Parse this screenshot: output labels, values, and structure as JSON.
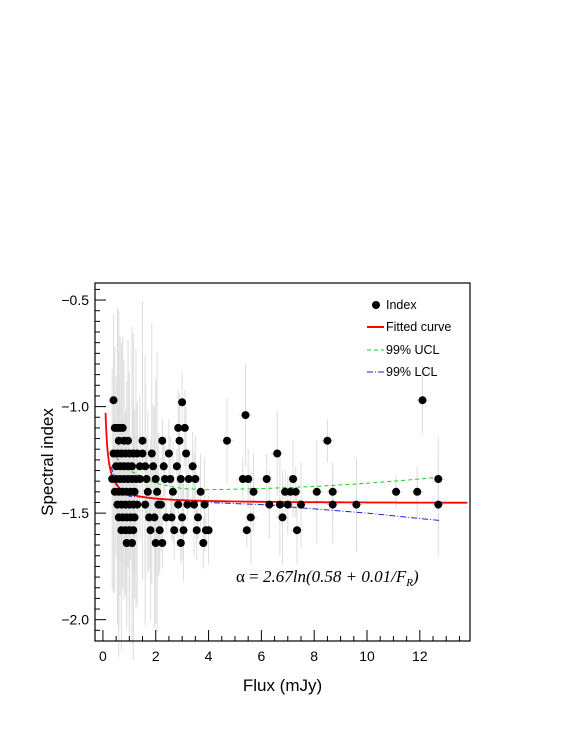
{
  "chart_data": {
    "type": "scatter",
    "xlabel": "Flux (mJy)",
    "ylabel": "Spectral index",
    "xlim": [
      -0.3,
      13.9
    ],
    "ylim": [
      -2.1,
      -0.42
    ],
    "x_ticks": [
      0,
      2,
      4,
      6,
      8,
      10,
      12
    ],
    "y_ticks": [
      -0.5,
      -1.0,
      -1.5,
      -2.0
    ],
    "x_tick_labels": [
      "0",
      "2",
      "4",
      "6",
      "8",
      "10",
      "12"
    ],
    "y_tick_labels": [
      "−0.5",
      "−1.0",
      "−1.5",
      "−2.0"
    ],
    "legend_position": "top-right",
    "legend": [
      {
        "label": "Index",
        "style": "marker",
        "color": "#000000"
      },
      {
        "label": "Fitted curve",
        "style": "solid",
        "color": "#ff0000"
      },
      {
        "label": "99% UCL",
        "style": "dashed",
        "color": "#22cc22"
      },
      {
        "label": "99% LCL",
        "style": "dashdot",
        "color": "#2222cc"
      }
    ],
    "annotation": {
      "prefix": "α = ",
      "formula": "2.67ln(0.58 + 0.01/F",
      "subscript": "R",
      "suffix": ")"
    },
    "fit": {
      "a": 2.67,
      "b": 0.58,
      "c": 0.01
    },
    "ucl": [
      [
        0.5,
        -1.24
      ],
      [
        1,
        -1.3
      ],
      [
        2,
        -1.36
      ],
      [
        3,
        -1.385
      ],
      [
        4,
        -1.39
      ],
      [
        6,
        -1.385
      ],
      [
        8,
        -1.375
      ],
      [
        10,
        -1.36
      ],
      [
        12,
        -1.34
      ],
      [
        12.8,
        -1.33
      ]
    ],
    "lcl": [
      [
        0.3,
        -1.28
      ],
      [
        0.6,
        -1.38
      ],
      [
        1,
        -1.42
      ],
      [
        2,
        -1.43
      ],
      [
        4,
        -1.45
      ],
      [
        6,
        -1.46
      ],
      [
        8,
        -1.48
      ],
      [
        10,
        -1.5
      ],
      [
        12,
        -1.525
      ],
      [
        12.8,
        -1.535
      ]
    ],
    "points": [
      [
        0.4,
        -0.97
      ],
      [
        0.45,
        -1.1
      ],
      [
        0.55,
        -1.1
      ],
      [
        0.65,
        -1.1
      ],
      [
        0.75,
        -1.1
      ],
      [
        0.6,
        -1.16
      ],
      [
        0.8,
        -1.16
      ],
      [
        0.95,
        -1.16
      ],
      [
        0.4,
        -1.22
      ],
      [
        0.55,
        -1.22
      ],
      [
        0.7,
        -1.22
      ],
      [
        0.85,
        -1.22
      ],
      [
        1.0,
        -1.22
      ],
      [
        1.15,
        -1.22
      ],
      [
        1.3,
        -1.22
      ],
      [
        0.5,
        -1.28
      ],
      [
        0.65,
        -1.28
      ],
      [
        0.8,
        -1.28
      ],
      [
        0.95,
        -1.28
      ],
      [
        1.1,
        -1.28
      ],
      [
        1.4,
        -1.28
      ],
      [
        0.35,
        -1.34
      ],
      [
        0.5,
        -1.34
      ],
      [
        0.65,
        -1.34
      ],
      [
        0.8,
        -1.34
      ],
      [
        0.95,
        -1.34
      ],
      [
        1.1,
        -1.34
      ],
      [
        1.25,
        -1.34
      ],
      [
        1.4,
        -1.34
      ],
      [
        0.45,
        -1.4
      ],
      [
        0.6,
        -1.4
      ],
      [
        0.75,
        -1.4
      ],
      [
        0.9,
        -1.4
      ],
      [
        1.05,
        -1.4
      ],
      [
        1.2,
        -1.4
      ],
      [
        0.55,
        -1.46
      ],
      [
        0.7,
        -1.46
      ],
      [
        0.85,
        -1.46
      ],
      [
        1.0,
        -1.46
      ],
      [
        1.15,
        -1.46
      ],
      [
        1.3,
        -1.46
      ],
      [
        0.6,
        -1.52
      ],
      [
        0.75,
        -1.52
      ],
      [
        0.9,
        -1.52
      ],
      [
        1.05,
        -1.52
      ],
      [
        1.2,
        -1.52
      ],
      [
        0.7,
        -1.58
      ],
      [
        0.85,
        -1.58
      ],
      [
        1.0,
        -1.58
      ],
      [
        1.15,
        -1.58
      ],
      [
        0.9,
        -1.64
      ],
      [
        1.1,
        -1.64
      ],
      [
        1.5,
        -1.16
      ],
      [
        1.5,
        -1.22
      ],
      [
        1.6,
        -1.28
      ],
      [
        1.65,
        -1.34
      ],
      [
        1.7,
        -1.4
      ],
      [
        1.6,
        -1.46
      ],
      [
        1.75,
        -1.52
      ],
      [
        1.8,
        -1.58
      ],
      [
        1.85,
        -1.22
      ],
      [
        1.9,
        -1.28
      ],
      [
        2.0,
        -1.34
      ],
      [
        2.05,
        -1.4
      ],
      [
        2.1,
        -1.46
      ],
      [
        1.95,
        -1.52
      ],
      [
        2.15,
        -1.58
      ],
      [
        2.0,
        -1.64
      ],
      [
        2.25,
        -1.16
      ],
      [
        2.3,
        -1.28
      ],
      [
        2.35,
        -1.34
      ],
      [
        2.2,
        -1.46
      ],
      [
        2.4,
        -1.52
      ],
      [
        2.25,
        -1.64
      ],
      [
        2.5,
        -1.22
      ],
      [
        2.55,
        -1.34
      ],
      [
        2.65,
        -1.4
      ],
      [
        2.6,
        -1.52
      ],
      [
        2.7,
        -1.58
      ],
      [
        2.85,
        -1.1
      ],
      [
        2.9,
        -1.16
      ],
      [
        2.8,
        -1.28
      ],
      [
        2.95,
        -1.34
      ],
      [
        2.85,
        -1.46
      ],
      [
        3.0,
        -1.52
      ],
      [
        3.05,
        -1.58
      ],
      [
        2.95,
        -1.64
      ],
      [
        3.0,
        -0.98
      ],
      [
        3.1,
        -1.1
      ],
      [
        3.15,
        -1.22
      ],
      [
        3.2,
        -1.46
      ],
      [
        3.25,
        -1.34
      ],
      [
        3.4,
        -1.28
      ],
      [
        3.5,
        -1.34
      ],
      [
        3.45,
        -1.46
      ],
      [
        3.6,
        -1.52
      ],
      [
        3.55,
        -1.58
      ],
      [
        3.7,
        -1.4
      ],
      [
        3.85,
        -1.46
      ],
      [
        3.9,
        -1.58
      ],
      [
        3.8,
        -1.64
      ],
      [
        4.0,
        -1.58
      ],
      [
        4.7,
        -1.16
      ],
      [
        5.4,
        -1.04
      ],
      [
        5.3,
        -1.34
      ],
      [
        5.5,
        -1.34
      ],
      [
        5.7,
        -1.4
      ],
      [
        5.6,
        -1.52
      ],
      [
        5.45,
        -1.58
      ],
      [
        6.2,
        -1.34
      ],
      [
        6.3,
        -1.46
      ],
      [
        6.6,
        -1.22
      ],
      [
        6.7,
        -1.46
      ],
      [
        6.9,
        -1.4
      ],
      [
        7.0,
        -1.46
      ],
      [
        7.2,
        -1.34
      ],
      [
        6.8,
        -1.52
      ],
      [
        7.1,
        -1.4
      ],
      [
        7.3,
        -1.4
      ],
      [
        7.35,
        -1.58
      ],
      [
        7.5,
        -1.46
      ],
      [
        8.1,
        -1.4
      ],
      [
        8.5,
        -1.16
      ],
      [
        8.7,
        -1.4
      ],
      [
        8.7,
        -1.46
      ],
      [
        9.6,
        -1.46
      ],
      [
        11.1,
        -1.4
      ],
      [
        11.9,
        -1.4
      ],
      [
        12.1,
        -0.97
      ],
      [
        12.7,
        -1.34
      ],
      [
        12.7,
        -1.46
      ]
    ]
  }
}
